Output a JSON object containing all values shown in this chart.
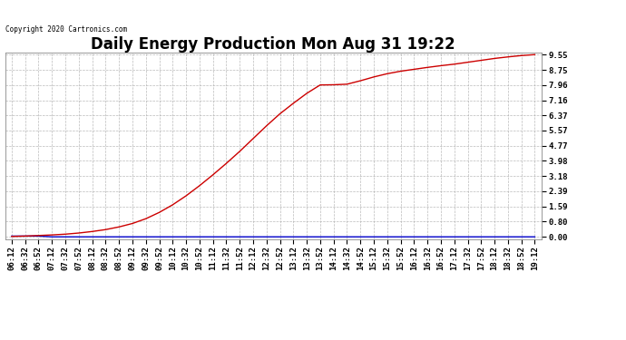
{
  "title": "Daily Energy Production Mon Aug 31 19:22",
  "copyright": "Copyright 2020 Cartronics.com",
  "legend_offpeak_color": "#0000cc",
  "legend_onpeak_color": "#cc0000",
  "yticks": [
    0.0,
    0.8,
    1.59,
    2.39,
    3.18,
    3.98,
    4.77,
    5.57,
    6.37,
    7.16,
    7.96,
    8.75,
    9.55
  ],
  "ymax": 9.55,
  "ymin": 0.0,
  "background_color": "#ffffff",
  "plot_bg_color": "#ffffff",
  "grid_color": "#aaaaaa",
  "title_fontsize": 12,
  "tick_fontsize": 6.5,
  "line_color_onpeak": "#cc0000",
  "line_color_offpeak": "#0000cc",
  "xtick_labels": [
    "06:12",
    "06:32",
    "06:52",
    "07:12",
    "07:32",
    "07:52",
    "08:12",
    "08:32",
    "08:52",
    "09:12",
    "09:32",
    "09:52",
    "10:12",
    "10:32",
    "10:52",
    "11:12",
    "11:32",
    "11:52",
    "12:12",
    "12:32",
    "12:52",
    "13:12",
    "13:32",
    "13:52",
    "14:12",
    "14:32",
    "14:52",
    "15:12",
    "15:32",
    "15:52",
    "16:12",
    "16:32",
    "16:52",
    "17:12",
    "17:32",
    "17:52",
    "18:12",
    "18:32",
    "18:52",
    "19:12"
  ],
  "onpeak_y": [
    0.02,
    0.04,
    0.07,
    0.1,
    0.14,
    0.2,
    0.28,
    0.38,
    0.52,
    0.7,
    0.95,
    1.28,
    1.68,
    2.15,
    2.68,
    3.25,
    3.85,
    4.48,
    5.15,
    5.82,
    6.45,
    7.0,
    7.52,
    7.96,
    7.97,
    8.0,
    8.18,
    8.38,
    8.55,
    8.68,
    8.78,
    8.88,
    8.97,
    9.05,
    9.15,
    9.25,
    9.35,
    9.43,
    9.5,
    9.55
  ],
  "offpeak_y": [
    0.04,
    0.04,
    0.04,
    0.0,
    0.0,
    0.0,
    0.0,
    0.0,
    0.0,
    0.0,
    0.0,
    0.0,
    0.0,
    0.0,
    0.0,
    0.0,
    0.0,
    0.0,
    0.0,
    0.0,
    0.0,
    0.0,
    0.0,
    0.0,
    0.0,
    0.0,
    0.0,
    0.0,
    0.0,
    0.0,
    0.0,
    0.0,
    0.0,
    0.0,
    0.0,
    0.0,
    0.0,
    0.0,
    0.0,
    0.0
  ]
}
